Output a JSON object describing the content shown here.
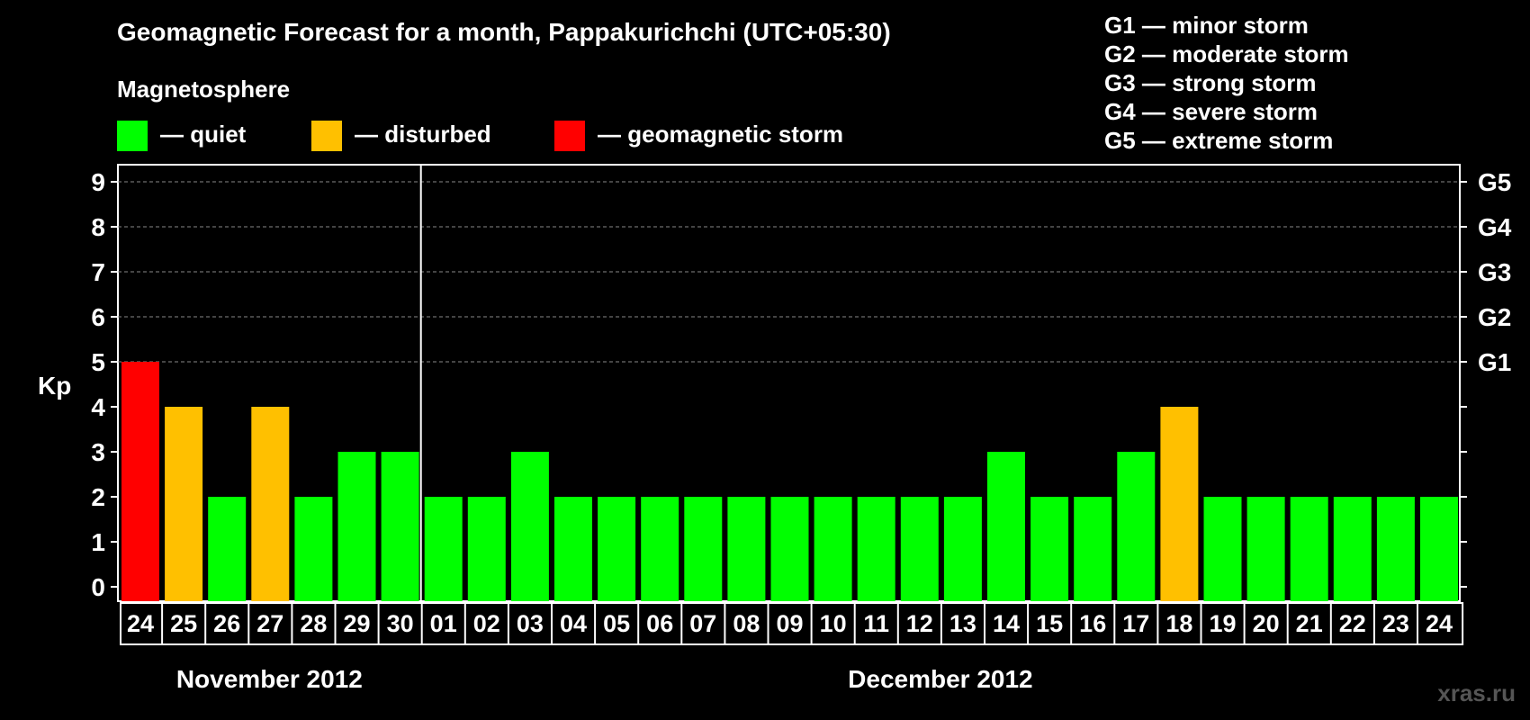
{
  "chart_data": {
    "type": "bar",
    "title": "Geomagnetic Forecast for a month, Pappakurichchi (UTC+05:30)",
    "ylabel": "Kp",
    "ylim": [
      0,
      9
    ],
    "yticks": [
      0,
      1,
      2,
      3,
      4,
      5,
      6,
      7,
      8,
      9
    ],
    "right_axis_labels": [
      {
        "kp": 5,
        "label": "G1"
      },
      {
        "kp": 6,
        "label": "G2"
      },
      {
        "kp": 7,
        "label": "G3"
      },
      {
        "kp": 8,
        "label": "G4"
      },
      {
        "kp": 9,
        "label": "G5"
      }
    ],
    "categories": [
      "24",
      "25",
      "26",
      "27",
      "28",
      "29",
      "30",
      "01",
      "02",
      "03",
      "04",
      "05",
      "06",
      "07",
      "08",
      "09",
      "10",
      "11",
      "12",
      "13",
      "14",
      "15",
      "16",
      "17",
      "18",
      "19",
      "20",
      "21",
      "22",
      "23",
      "24"
    ],
    "values": [
      5,
      4,
      2,
      4,
      2,
      3,
      3,
      2,
      2,
      3,
      2,
      2,
      2,
      2,
      2,
      2,
      2,
      2,
      2,
      2,
      3,
      2,
      2,
      3,
      4,
      2,
      2,
      2,
      2,
      2,
      2
    ],
    "months": [
      {
        "label": "November 2012",
        "days": 7
      },
      {
        "label": "December 2012",
        "days": 24
      }
    ],
    "grid": true,
    "colors": {
      "quiet": "#00ff00",
      "disturbed": "#ffc000",
      "storm": "#ff0000"
    }
  },
  "legend": {
    "heading": "Magnetosphere",
    "items": [
      {
        "key": "quiet",
        "label": "— quiet",
        "color": "#00ff00"
      },
      {
        "key": "disturbed",
        "label": "— disturbed",
        "color": "#ffc000"
      },
      {
        "key": "storm",
        "label": "— geomagnetic storm",
        "color": "#ff0000"
      }
    ]
  },
  "g_scale": [
    "G1 — minor storm",
    "G2 — moderate storm",
    "G3 — strong storm",
    "G4 — severe storm",
    "G5 — extreme storm"
  ],
  "watermark": "xras.ru"
}
